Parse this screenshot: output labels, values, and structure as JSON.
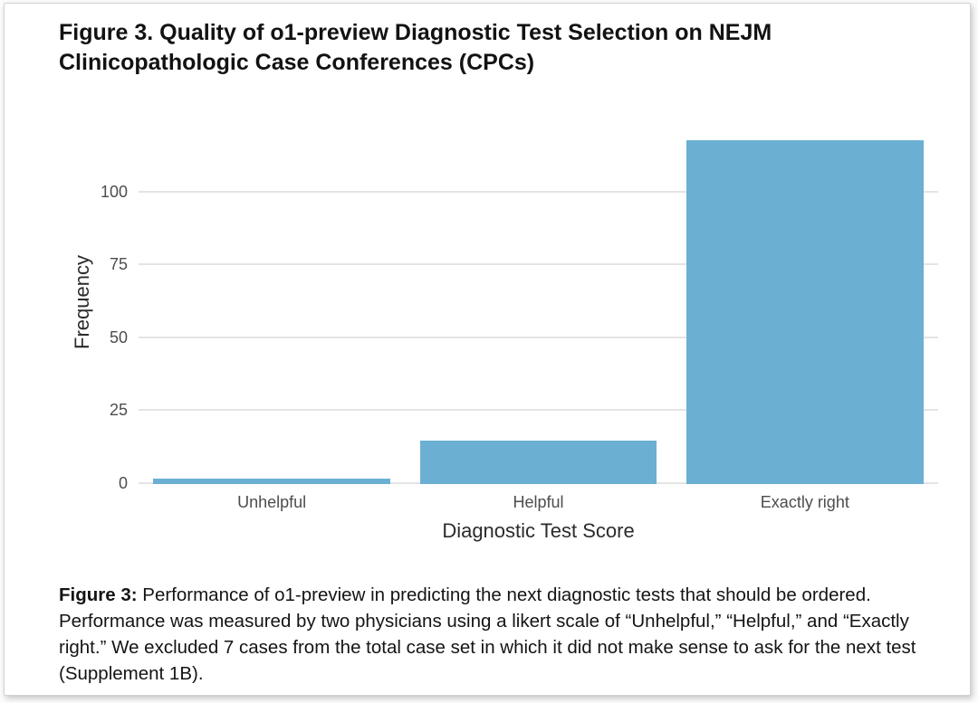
{
  "figure": {
    "title": "Figure 3. Quality of o1-preview Diagnostic Test Selection on NEJM Clinicopathologic Case Conferences (CPCs)",
    "caption_prefix": "Figure 3:",
    "caption_body": " Performance of o1-preview in predicting the next diagnostic tests that should be ordered. Performance was measured by two physicians using a likert scale of “Unhelpful,” “Helpful,” and “Exactly right.” We excluded 7 cases from the total case set in which it did not make sense to ask for the next test (Supplement 1B)."
  },
  "chart_data": {
    "type": "bar",
    "title": "Quality of o1-preview Diagnostic Test Selection on NEJM CPCs",
    "categories": [
      "Unhelpful",
      "Helpful",
      "Exactly right"
    ],
    "values": [
      2,
      15,
      118
    ],
    "xlabel": "Diagnostic Test Score",
    "ylabel": "Frequency",
    "ylim": [
      0,
      125
    ],
    "yticks": [
      0,
      25,
      50,
      75,
      100
    ],
    "bar_color": "#6BB0D3",
    "grid": true,
    "gridline_color": "#E4E4E4",
    "legend": "none"
  }
}
